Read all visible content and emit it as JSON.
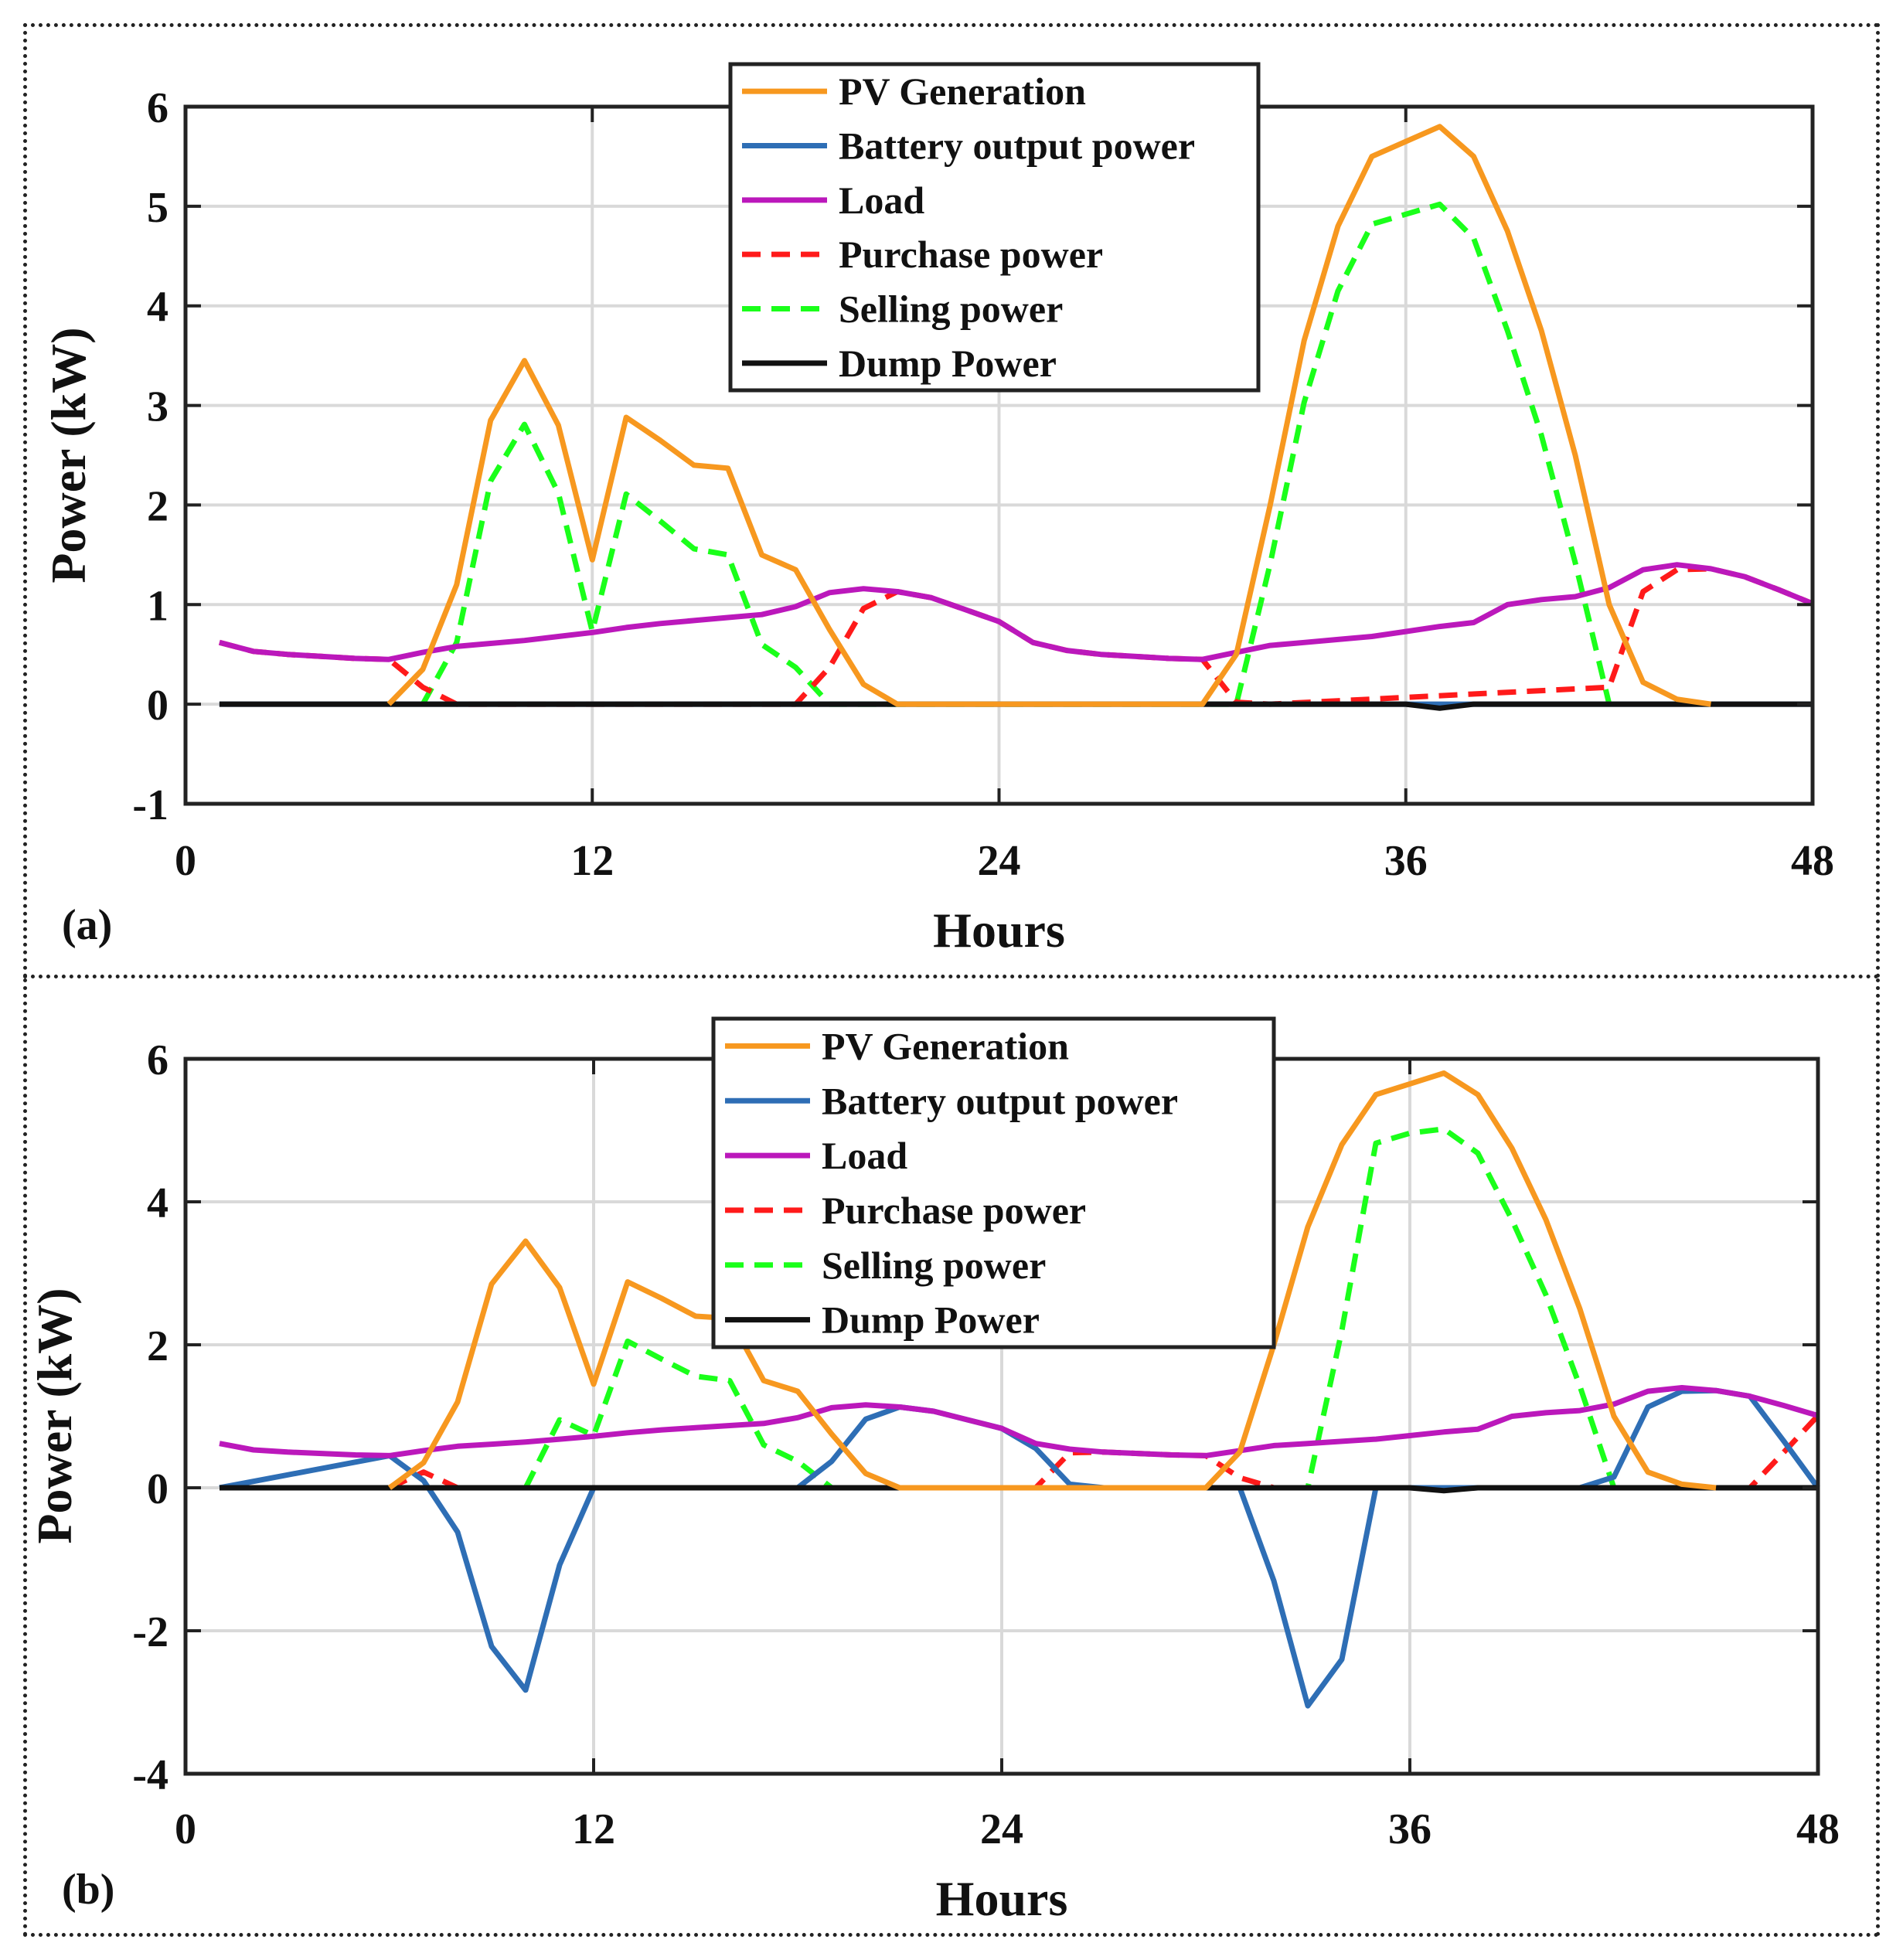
{
  "chart_data": [
    {
      "panel_label": "(a)",
      "type": "line",
      "xlabel": "Hours",
      "ylabel": "Power (kW)",
      "xlim": [
        0,
        48
      ],
      "ylim": [
        -1,
        6
      ],
      "xticks": [
        0,
        12,
        24,
        36,
        48
      ],
      "yticks": [
        -1,
        0,
        1,
        2,
        3,
        4,
        5,
        6
      ],
      "grid": true,
      "legend_position": "top-center",
      "series": [
        {
          "name": "PV Generation",
          "color": "#F7981F",
          "dashed": false,
          "x": [
            6,
            7,
            8,
            9,
            10,
            11,
            12,
            13,
            14,
            15,
            16,
            17,
            18,
            19,
            20,
            21,
            30,
            31,
            32,
            33,
            34,
            35,
            36,
            37,
            38,
            39,
            40,
            41,
            42,
            43,
            44,
            45
          ],
          "y": [
            0,
            0.35,
            1.2,
            2.85,
            3.45,
            2.8,
            1.45,
            2.88,
            2.65,
            2.4,
            2.37,
            1.5,
            1.35,
            0.75,
            0.2,
            0,
            0,
            0.5,
            2,
            3.65,
            4.8,
            5.5,
            5.65,
            5.8,
            5.5,
            4.75,
            3.75,
            2.5,
            1,
            0.22,
            0.05,
            0
          ]
        },
        {
          "name": "Battery output power",
          "color": "#2E6EB5",
          "dashed": false,
          "x": [
            1,
            37,
            38,
            48
          ],
          "y": [
            0,
            0,
            0,
            0
          ]
        },
        {
          "name": "Load",
          "color": "#BB18BB",
          "dashed": false,
          "x": [
            1,
            2,
            3,
            4,
            5,
            6,
            7,
            8,
            9,
            10,
            11,
            12,
            13,
            14,
            15,
            16,
            17,
            18,
            19,
            20,
            21,
            22,
            23,
            24,
            25,
            26,
            27,
            28,
            29,
            30,
            31,
            32,
            33,
            34,
            35,
            36,
            37,
            38,
            39,
            40,
            41,
            42,
            43,
            44,
            45,
            46,
            47,
            48
          ],
          "y": [
            0.62,
            0.53,
            0.5,
            0.48,
            0.46,
            0.45,
            0.52,
            0.58,
            0.61,
            0.64,
            0.68,
            0.72,
            0.77,
            0.81,
            0.84,
            0.87,
            0.9,
            0.98,
            1.12,
            1.16,
            1.13,
            1.07,
            0.95,
            0.83,
            0.62,
            0.54,
            0.5,
            0.48,
            0.46,
            0.45,
            0.52,
            0.59,
            0.62,
            0.65,
            0.68,
            0.73,
            0.78,
            0.82,
            1,
            1.05,
            1.08,
            1.17,
            1.35,
            1.4,
            1.36,
            1.28,
            1.15,
            1.01
          ]
        },
        {
          "name": "Purchase power",
          "color": "#FF1A1A",
          "dashed": true,
          "x": [
            1,
            2,
            3,
            4,
            5,
            6,
            7,
            8,
            18,
            19,
            20,
            21,
            22,
            23,
            24,
            25,
            26,
            27,
            28,
            29,
            30,
            31,
            32,
            42,
            43,
            44,
            45,
            46,
            47,
            48
          ],
          "y": [
            0.62,
            0.53,
            0.5,
            0.48,
            0.46,
            0.45,
            0.17,
            0,
            0,
            0.37,
            0.96,
            1.13,
            1.07,
            0.95,
            0.83,
            0.62,
            0.54,
            0.5,
            0.48,
            0.46,
            0.45,
            0.02,
            0,
            0.17,
            1.13,
            1.35,
            1.36,
            1.28,
            1.15,
            1.01
          ]
        },
        {
          "name": "Selling power",
          "color": "#1AFF1A",
          "dashed": true,
          "x": [
            7,
            8,
            9,
            10,
            11,
            12,
            13,
            14,
            15,
            16,
            17,
            18,
            19,
            31,
            32,
            33,
            34,
            35,
            36,
            37,
            38,
            39,
            40,
            41,
            42
          ],
          "y": [
            0,
            0.62,
            2.24,
            2.81,
            2.12,
            0.73,
            2.11,
            1.84,
            1.56,
            1.5,
            0.6,
            0.37,
            0,
            0,
            1.41,
            3.03,
            4.15,
            4.82,
            4.92,
            5.02,
            4.68,
            3.75,
            2.7,
            1.42,
            0
          ]
        },
        {
          "name": "Dump Power",
          "color": "#111111",
          "dashed": false,
          "x": [
            1,
            36,
            37,
            38,
            48
          ],
          "y": [
            0,
            0,
            -0.04,
            0,
            0
          ]
        }
      ]
    },
    {
      "panel_label": "(b)",
      "type": "line",
      "xlabel": "Hours",
      "ylabel": "Power (kW)",
      "xlim": [
        0,
        48
      ],
      "ylim": [
        -4,
        6
      ],
      "xticks": [
        0,
        12,
        24,
        36,
        48
      ],
      "yticks": [
        -4,
        -2,
        0,
        2,
        4,
        6
      ],
      "grid": true,
      "legend_position": "top-center",
      "series": [
        {
          "name": "PV Generation",
          "color": "#F7981F",
          "dashed": false,
          "x": [
            6,
            7,
            8,
            9,
            10,
            11,
            12,
            13,
            14,
            15,
            16,
            17,
            18,
            19,
            20,
            21,
            30,
            31,
            32,
            33,
            34,
            35,
            36,
            37,
            38,
            39,
            40,
            41,
            42,
            43,
            44,
            45
          ],
          "y": [
            0,
            0.35,
            1.2,
            2.85,
            3.45,
            2.8,
            1.45,
            2.88,
            2.65,
            2.4,
            2.37,
            1.5,
            1.35,
            0.75,
            0.2,
            0,
            0,
            0.5,
            2,
            3.65,
            4.8,
            5.5,
            5.65,
            5.8,
            5.5,
            4.75,
            3.75,
            2.5,
            1,
            0.22,
            0.05,
            0
          ]
        },
        {
          "name": "Battery output power",
          "color": "#2E6EB5",
          "dashed": false,
          "x": [
            1,
            6,
            7,
            8,
            9,
            10,
            11,
            12,
            18,
            19,
            20,
            21,
            22,
            23,
            24,
            25,
            26,
            27,
            31,
            32,
            33,
            34,
            35,
            41,
            42,
            43,
            44,
            45,
            46,
            47,
            48
          ],
          "y": [
            0,
            0.45,
            0.1,
            -0.62,
            -2.22,
            -2.83,
            -1.08,
            0,
            0,
            0.37,
            0.96,
            1.13,
            1.07,
            0.95,
            0.83,
            0.55,
            0.05,
            0,
            0,
            -1.3,
            -3.05,
            -2.4,
            0,
            0,
            0.15,
            1.13,
            1.35,
            1.36,
            1.28,
            0.65,
            0
          ]
        },
        {
          "name": "Load",
          "color": "#BB18BB",
          "dashed": false,
          "x": [
            1,
            2,
            3,
            4,
            5,
            6,
            7,
            8,
            9,
            10,
            11,
            12,
            13,
            14,
            15,
            16,
            17,
            18,
            19,
            20,
            21,
            22,
            23,
            24,
            25,
            26,
            27,
            28,
            29,
            30,
            31,
            32,
            33,
            34,
            35,
            36,
            37,
            38,
            39,
            40,
            41,
            42,
            43,
            44,
            45,
            46,
            47,
            48
          ],
          "y": [
            0.62,
            0.53,
            0.5,
            0.48,
            0.46,
            0.45,
            0.52,
            0.58,
            0.61,
            0.64,
            0.68,
            0.72,
            0.77,
            0.81,
            0.84,
            0.87,
            0.9,
            0.98,
            1.12,
            1.16,
            1.13,
            1.07,
            0.95,
            0.83,
            0.62,
            0.54,
            0.5,
            0.48,
            0.46,
            0.45,
            0.52,
            0.59,
            0.62,
            0.65,
            0.68,
            0.73,
            0.78,
            0.82,
            1,
            1.05,
            1.08,
            1.17,
            1.35,
            1.4,
            1.36,
            1.28,
            1.15,
            1.01
          ]
        },
        {
          "name": "Purchase power",
          "color": "#FF1A1A",
          "dashed": true,
          "x": [
            6,
            7,
            8,
            25,
            26,
            27,
            28,
            29,
            30,
            31,
            32,
            46,
            47,
            48
          ],
          "y": [
            0,
            0.22,
            0,
            0,
            0.49,
            0.5,
            0.48,
            0.46,
            0.45,
            0.14,
            0,
            0,
            0.5,
            1.01
          ]
        },
        {
          "name": "Selling power",
          "color": "#1AFF1A",
          "dashed": true,
          "x": [
            10,
            11,
            12,
            13,
            14,
            15,
            16,
            17,
            18,
            19,
            33,
            34,
            35,
            36,
            37,
            38,
            39,
            40,
            41,
            42
          ],
          "y": [
            0,
            0.95,
            0.73,
            2.05,
            1.8,
            1.56,
            1.5,
            0.6,
            0.37,
            0,
            0,
            2.2,
            4.82,
            4.96,
            5.02,
            4.68,
            3.75,
            2.7,
            1.42,
            0
          ]
        },
        {
          "name": "Dump Power",
          "color": "#111111",
          "dashed": false,
          "x": [
            1,
            36,
            37,
            38,
            48
          ],
          "y": [
            0,
            0,
            -0.04,
            0,
            0
          ]
        }
      ]
    }
  ]
}
